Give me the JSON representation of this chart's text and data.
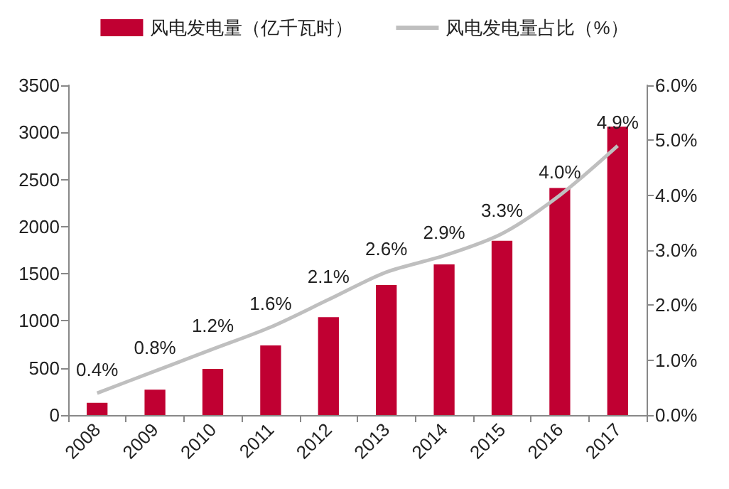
{
  "chart_data": {
    "type": "bar",
    "categories": [
      "2008",
      "2009",
      "2010",
      "2011",
      "2012",
      "2013",
      "2014",
      "2015",
      "2016",
      "2017"
    ],
    "series": [
      {
        "name": "风电发电量（亿千瓦时）",
        "color": "#c00032",
        "values": [
          130,
          270,
          490,
          740,
          1040,
          1380,
          1600,
          1850,
          2410,
          3060
        ]
      },
      {
        "name": "风电发电量占比（%）",
        "type": "line",
        "axis": "y2",
        "color": "#bfbfbf",
        "values": [
          0.4,
          0.8,
          1.2,
          1.6,
          2.1,
          2.6,
          2.9,
          3.3,
          4.0,
          4.9
        ],
        "value_labels": [
          "0.4%",
          "0.8%",
          "1.2%",
          "1.6%",
          "2.1%",
          "2.6%",
          "2.9%",
          "3.3%",
          "4.0%",
          "4.9%"
        ]
      }
    ],
    "ylim": [
      0,
      3500
    ],
    "yticks": [
      0,
      500,
      1000,
      1500,
      2000,
      2500,
      3000,
      3500
    ],
    "y2lim": [
      0,
      6
    ],
    "y2ticks": [
      {
        "value": 0,
        "label": "0.0%"
      },
      {
        "value": 1,
        "label": "1.0%"
      },
      {
        "value": 2,
        "label": "2.0%"
      },
      {
        "value": 3,
        "label": "3.0%"
      },
      {
        "value": 4,
        "label": "4.0%"
      },
      {
        "value": 5,
        "label": "5.0%"
      },
      {
        "value": 6,
        "label": "6.0%"
      }
    ],
    "grid": false,
    "legend": "top",
    "marker": "none",
    "line_style": "solid"
  }
}
